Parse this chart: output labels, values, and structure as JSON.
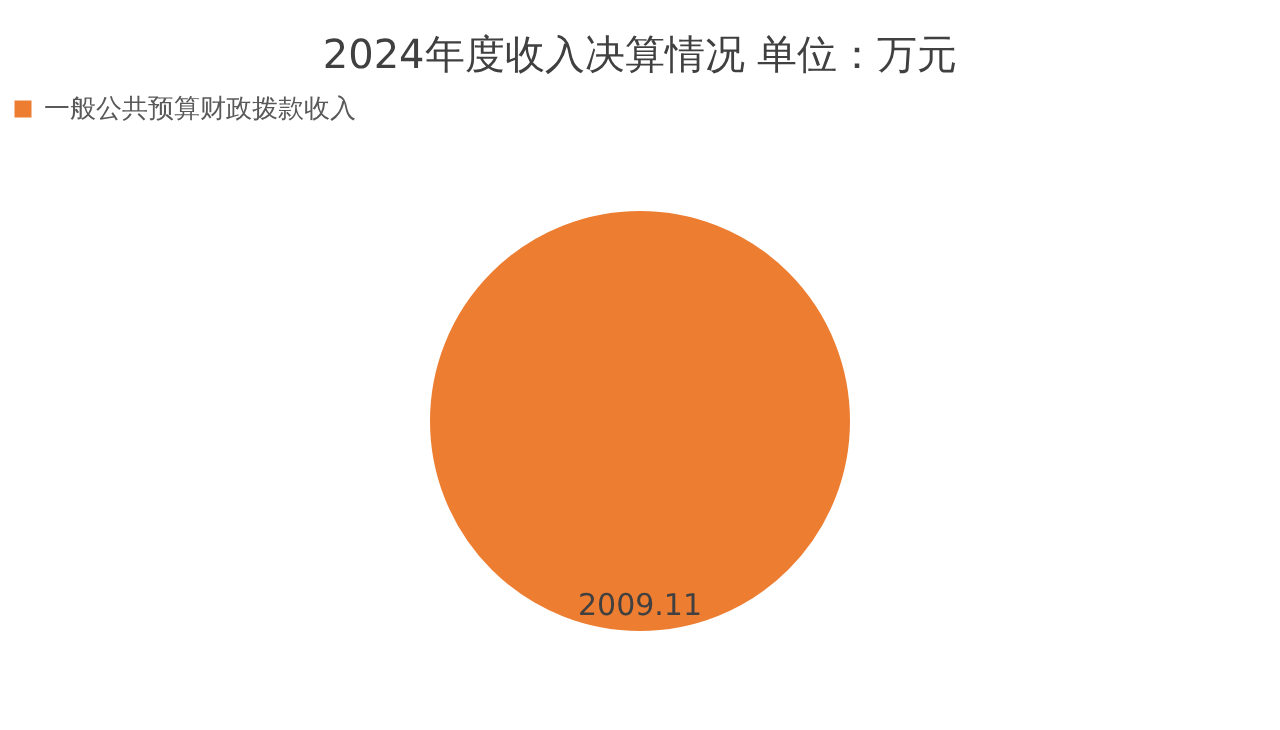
{
  "chart_data": {
    "type": "pie",
    "title": "2024年度收入决算情况         单位：万元",
    "categories": [
      "一般公共预算财政拨款收入"
    ],
    "values": [
      2009.11
    ],
    "colors": [
      "#ed7d31"
    ],
    "data_labels": true,
    "legend": "top"
  }
}
